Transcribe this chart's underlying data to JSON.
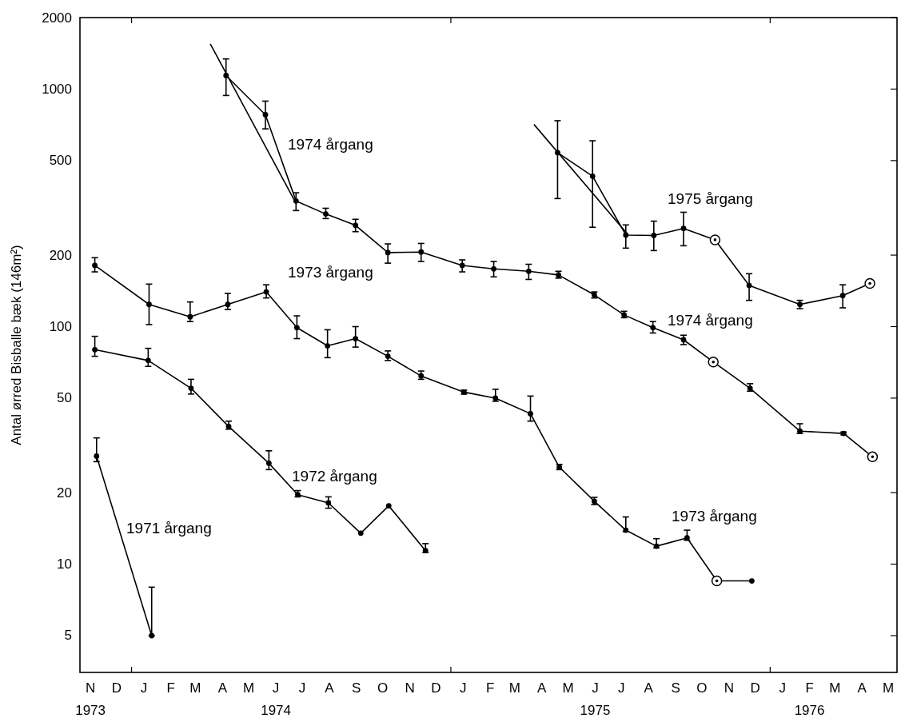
{
  "chart_data": {
    "type": "line",
    "ylabel": "Antal ørred Bisballe bæk (146m²)",
    "log": "y",
    "ylim": [
      3.5,
      2000
    ],
    "yticks": [
      5,
      10,
      20,
      50,
      100,
      200,
      500,
      1000,
      2000
    ],
    "xlim": [
      "1973-11-03",
      "1976-05-25"
    ],
    "xticks": [
      {
        "value": "1973-11-15",
        "label": "N\n1973"
      },
      {
        "value": "1973-12-15",
        "label": "D"
      },
      {
        "value": "1974-01-01",
        "label": null
      },
      {
        "value": "1974-01-15",
        "label": "J"
      },
      {
        "value": "1974-02-15",
        "label": "F"
      },
      {
        "value": "1974-03-15",
        "label": "M"
      },
      {
        "value": "1974-04-15",
        "label": "A"
      },
      {
        "value": "1974-05-15",
        "label": "M"
      },
      {
        "value": "1974-06-15",
        "label": "J\n1974"
      },
      {
        "value": "1974-07-15",
        "label": "J"
      },
      {
        "value": "1974-08-15",
        "label": "A"
      },
      {
        "value": "1974-09-15",
        "label": "S"
      },
      {
        "value": "1974-10-15",
        "label": "O"
      },
      {
        "value": "1974-11-15",
        "label": "N"
      },
      {
        "value": "1974-12-15",
        "label": "D"
      },
      {
        "value": "1975-01-01",
        "label": null
      },
      {
        "value": "1975-01-15",
        "label": "J"
      },
      {
        "value": "1975-02-15",
        "label": "F"
      },
      {
        "value": "1975-03-15",
        "label": "M"
      },
      {
        "value": "1975-04-15",
        "label": "A"
      },
      {
        "value": "1975-05-15",
        "label": "M"
      },
      {
        "value": "1975-06-15",
        "label": "J\n1975"
      },
      {
        "value": "1975-07-15",
        "label": "J"
      },
      {
        "value": "1975-08-15",
        "label": "A"
      },
      {
        "value": "1975-09-15",
        "label": "S"
      },
      {
        "value": "1975-10-15",
        "label": "O"
      },
      {
        "value": "1975-11-15",
        "label": "N"
      },
      {
        "value": "1975-12-15",
        "label": "D"
      },
      {
        "value": "1976-01-01",
        "label": null
      },
      {
        "value": "1976-01-15",
        "label": "J"
      },
      {
        "value": "1976-02-15",
        "label": "F\n1976"
      },
      {
        "value": "1976-03-15",
        "label": "M"
      },
      {
        "value": "1976-04-15",
        "label": "A"
      },
      {
        "value": "1976-05-15",
        "label": "M"
      }
    ],
    "grid": false,
    "series": [
      {
        "color": "#000000",
        "marker": "circle",
        "x": [
          "1973-11-22",
          "1974-01-24"
        ],
        "values": [
          28.5,
          5
        ],
        "errors": [
          [
            27,
            34
          ],
          [
            5,
            8
          ]
        ]
      },
      {
        "color": "#000000",
        "marker": "circle",
        "x": [
          "1973-11-20",
          "1974-01-20",
          "1974-03-10",
          "1974-04-22",
          "1974-06-07",
          "1974-07-10",
          "1974-08-14",
          "1974-09-20",
          "1974-10-22",
          "1974-12-03"
        ],
        "values": [
          80,
          72,
          55,
          38,
          26.6,
          19.6,
          18.1,
          13.5,
          17.6,
          11.4
        ],
        "errors": [
          [
            75,
            91
          ],
          [
            68,
            81
          ],
          [
            52,
            60
          ],
          [
            37,
            40
          ],
          [
            25,
            30
          ],
          [
            19.2,
            20.4
          ],
          [
            17.2,
            19.2
          ],
          null,
          null,
          [
            11.2,
            12.2
          ]
        ]
      },
      {
        "color": "#000000",
        "marker": "circle",
        "x": [
          "1973-11-20",
          "1974-01-21",
          "1974-03-09",
          "1974-04-21",
          "1974-06-04",
          "1974-07-09",
          "1974-08-13",
          "1974-09-14",
          "1974-10-21",
          "1974-11-28",
          "1975-01-16",
          "1975-02-21",
          "1975-04-02",
          "1975-05-05",
          "1975-06-14",
          "1975-07-20",
          "1975-08-24",
          "1975-09-28",
          "1975-11-01",
          "1975-12-11"
        ],
        "values": [
          181,
          124,
          110,
          124,
          140,
          99,
          83,
          89,
          75,
          62,
          53,
          50,
          43,
          25.6,
          18.4,
          13.9,
          11.9,
          12.9,
          8.5,
          8.5
        ],
        "errors": [
          [
            170,
            195
          ],
          [
            102,
            151
          ],
          [
            105,
            127
          ],
          [
            118,
            138
          ],
          [
            132,
            150
          ],
          [
            89,
            111
          ],
          [
            74,
            97
          ],
          [
            82,
            100
          ],
          [
            72,
            79
          ],
          [
            60,
            65
          ],
          [
            52,
            54
          ],
          [
            48.5,
            54.5
          ],
          [
            40,
            51
          ],
          [
            25,
            26.3
          ],
          [
            17.8,
            19.1
          ],
          [
            13.7,
            15.8
          ],
          [
            11.7,
            12.8
          ],
          [
            12.6,
            13.9
          ],
          null,
          null
        ]
      },
      {
        "color": "#000000",
        "marker": "circle",
        "x": [
          "1974-04-19",
          "1974-06-03",
          "1974-07-08",
          "1974-08-11",
          "1974-09-14",
          "1974-10-21",
          "1974-11-28",
          "1975-01-14",
          "1975-02-19",
          "1975-03-31",
          "1975-05-04",
          "1975-06-14",
          "1975-07-18",
          "1975-08-20",
          "1975-09-24",
          "1975-10-28",
          "1975-12-09",
          "1976-02-04",
          "1976-03-25",
          "1976-04-27"
        ],
        "values": [
          1140,
          780,
          338,
          298,
          267,
          205,
          206,
          181,
          175,
          171,
          165,
          136,
          112,
          99,
          88,
          71,
          55,
          36.3,
          35.5,
          28.3
        ],
        "errors": [
          [
            940,
            1340
          ],
          [
            680,
            890
          ],
          [
            308,
            366
          ],
          [
            285,
            315
          ],
          [
            251,
            283
          ],
          [
            185,
            223
          ],
          [
            188,
            224
          ],
          [
            170,
            191
          ],
          [
            162,
            188
          ],
          [
            158,
            183
          ],
          [
            160,
            171
          ],
          [
            132,
            140
          ],
          [
            109,
            116
          ],
          [
            94,
            105
          ],
          [
            84,
            92
          ],
          null,
          [
            53.5,
            57.5
          ],
          [
            35.5,
            39
          ],
          [
            35,
            36
          ],
          null
        ]
      },
      {
        "color": "#000000",
        "marker": "circle",
        "x": [
          "1975-05-03",
          "1975-06-12",
          "1975-07-20",
          "1975-08-21",
          "1975-09-24",
          "1975-10-30",
          "1975-12-08",
          "1976-02-04",
          "1976-03-24",
          "1976-04-24"
        ],
        "values": [
          540,
          430,
          243,
          242,
          259,
          232,
          149,
          124,
          135,
          152
        ],
        "errors": [
          [
            346,
            736
          ],
          [
            262,
            606
          ],
          [
            214,
            268
          ],
          [
            209,
            278
          ],
          [
            219,
            303
          ],
          null,
          [
            129,
            167
          ],
          [
            119,
            129
          ],
          [
            120,
            150
          ],
          null
        ]
      },
      {
        "color": "#000000",
        "marker": "none",
        "x": [
          "1974-04-01",
          "1974-07-08"
        ],
        "values": [
          1550,
          330
        ]
      },
      {
        "color": "#000000",
        "marker": "none",
        "x": [
          "1975-04-06",
          "1975-07-22"
        ],
        "values": [
          710,
          245
        ]
      },
      {
        "type": "scatter",
        "color": "#000000",
        "marker": "circle",
        "x": [
          "1975-11-01",
          "1975-10-28",
          "1976-04-27",
          "1975-10-30",
          "1976-04-24"
        ],
        "values": [
          8.5,
          71,
          28.3,
          232,
          152
        ]
      }
    ],
    "annotations": [
      "1974 årgang",
      "1973 årgang",
      "1972 årgang",
      "1971 årgang",
      "1975 årgang",
      "1974 årgang",
      "1973 årgang"
    ]
  }
}
